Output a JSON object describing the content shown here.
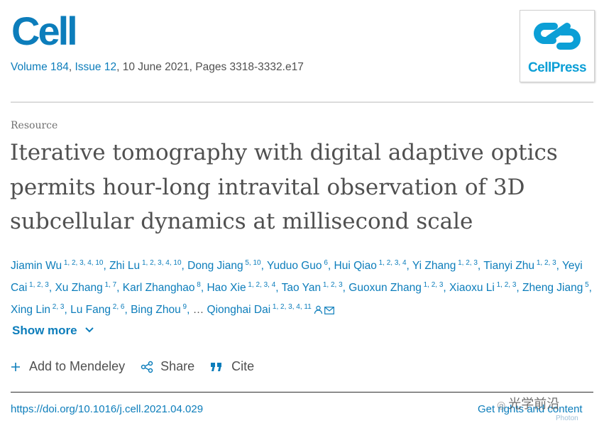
{
  "journal": {
    "name": "Cell",
    "volume_link": "Volume 184",
    "sep": ", ",
    "issue_link": "Issue 12",
    "rest": ", 10 June 2021, Pages 3318-3332.e17",
    "publisher_logo_text": "CellPress"
  },
  "article": {
    "type": "Resource",
    "title": "Iterative tomography with digital adaptive optics permits hour-long intravital observation of 3D subcellular dynamics at millisecond scale"
  },
  "authors": [
    {
      "name": "Jiamin Wu",
      "aff": "1, 2, 3, 4, 10"
    },
    {
      "name": "Zhi Lu",
      "aff": "1, 2, 3, 4, 10"
    },
    {
      "name": "Dong Jiang",
      "aff": "5, 10"
    },
    {
      "name": "Yuduo Guo",
      "aff": "6"
    },
    {
      "name": "Hui Qiao",
      "aff": "1, 2, 3, 4"
    },
    {
      "name": "Yi Zhang",
      "aff": "1, 2, 3"
    },
    {
      "name": "Tianyi Zhu",
      "aff": "1, 2, 3"
    },
    {
      "name": "Yeyi Cai",
      "aff": "1, 2, 3"
    },
    {
      "name": "Xu Zhang",
      "aff": "1, 7"
    },
    {
      "name": "Karl Zhanghao",
      "aff": "8"
    },
    {
      "name": "Hao Xie",
      "aff": "1, 2, 3, 4"
    },
    {
      "name": "Tao Yan",
      "aff": "1, 2, 3"
    },
    {
      "name": "Guoxun Zhang",
      "aff": "1, 2, 3"
    },
    {
      "name": "Xiaoxu Li",
      "aff": "1, 2, 3"
    },
    {
      "name": "Zheng Jiang",
      "aff": "5"
    },
    {
      "name": "Xing Lin",
      "aff": "2, 3"
    },
    {
      "name": "Lu Fang",
      "aff": "2, 6"
    },
    {
      "name": "Bing Zhou",
      "aff": "9"
    }
  ],
  "authors_ellipsis": "…",
  "last_author": {
    "name": "Qionghai Dai",
    "aff": "1, 2, 3, 4, 11"
  },
  "show_more": "Show more",
  "actions": {
    "mendeley": "Add to Mendeley",
    "share": "Share",
    "cite": "Cite"
  },
  "doi": "https://doi.org/10.1016/j.cell.2021.04.029",
  "rights": "Get rights and content",
  "watermark": {
    "text": "光学前沿",
    "sub": "Photon"
  },
  "icons": {
    "plus": "plus-icon",
    "share": "share-icon",
    "cite": "quote-icon",
    "person": "person-icon",
    "mail": "mail-icon",
    "chevron": "chevron-down-icon"
  },
  "colors": {
    "link": "#0c7dbb",
    "brand": "#0c9fd6",
    "text": "#505050"
  }
}
